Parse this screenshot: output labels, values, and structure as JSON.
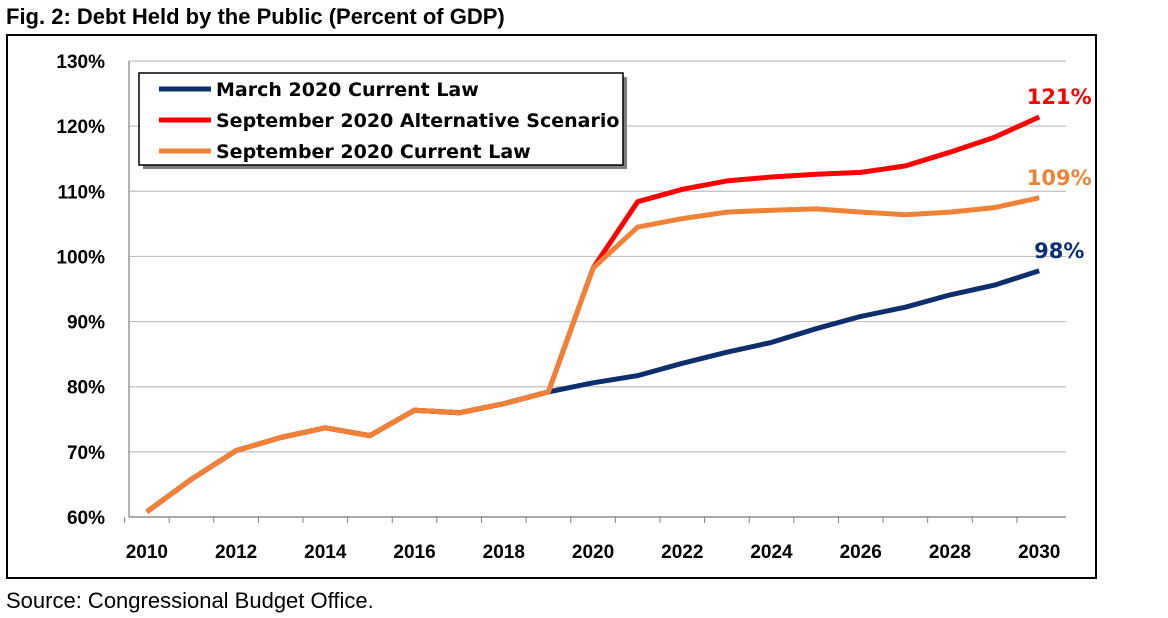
{
  "title": "Fig. 2: Debt Held by the Public (Percent of GDP)",
  "source": "Source: Congressional Budget Office.",
  "chart_data": {
    "type": "line",
    "title": "Fig. 2: Debt Held by the Public (Percent of GDP)",
    "xlabel": "",
    "ylabel": "",
    "xlim": [
      2009.6,
      2030.6
    ],
    "ylim": [
      60,
      130
    ],
    "y_ticks": [
      60,
      70,
      80,
      90,
      100,
      110,
      120,
      130
    ],
    "y_tick_labels": [
      "60%",
      "70%",
      "80%",
      "90%",
      "100%",
      "110%",
      "120%",
      "130%"
    ],
    "x_ticks": [
      2010,
      2012,
      2014,
      2016,
      2018,
      2020,
      2022,
      2024,
      2026,
      2028,
      2030
    ],
    "x_tick_labels": [
      "2010",
      "2012",
      "2014",
      "2016",
      "2018",
      "2020",
      "2022",
      "2024",
      "2026",
      "2028",
      "2030"
    ],
    "grid": "horizontal",
    "legend_position": "top-left",
    "series": [
      {
        "name": "March 2020 Current Law",
        "color": "#0e2f6e",
        "x": [
          2010,
          2011,
          2012,
          2013,
          2014,
          2015,
          2016,
          2017,
          2018,
          2019,
          2020,
          2021,
          2022,
          2023,
          2024,
          2025,
          2026,
          2027,
          2028,
          2029,
          2030
        ],
        "values": [
          60.8,
          65.8,
          70.2,
          72.2,
          73.7,
          72.5,
          76.4,
          76.0,
          77.4,
          79.2,
          80.6,
          81.7,
          83.6,
          85.3,
          86.8,
          88.9,
          90.8,
          92.2,
          94.1,
          95.6,
          97.8
        ],
        "end_label": "98%"
      },
      {
        "name": "September 2020 Alternative Scenario",
        "color": "#ff0000",
        "x": [
          2010,
          2011,
          2012,
          2013,
          2014,
          2015,
          2016,
          2017,
          2018,
          2019,
          2020,
          2021,
          2022,
          2023,
          2024,
          2025,
          2026,
          2027,
          2028,
          2029,
          2030
        ],
        "values": [
          60.8,
          65.8,
          70.2,
          72.2,
          73.7,
          72.5,
          76.4,
          76.0,
          77.4,
          79.2,
          98.2,
          108.4,
          110.3,
          111.6,
          112.2,
          112.6,
          112.9,
          113.9,
          116.0,
          118.3,
          121.4
        ],
        "end_label": "121%"
      },
      {
        "name": "September 2020 Current Law",
        "color": "#ef8236",
        "x": [
          2010,
          2011,
          2012,
          2013,
          2014,
          2015,
          2016,
          2017,
          2018,
          2019,
          2020,
          2021,
          2022,
          2023,
          2024,
          2025,
          2026,
          2027,
          2028,
          2029,
          2030
        ],
        "values": [
          60.8,
          65.8,
          70.2,
          72.2,
          73.7,
          72.5,
          76.4,
          76.0,
          77.4,
          79.2,
          98.2,
          104.5,
          105.8,
          106.8,
          107.1,
          107.3,
          106.8,
          106.4,
          106.8,
          107.5,
          109.0
        ],
        "end_label": "109%"
      }
    ]
  }
}
